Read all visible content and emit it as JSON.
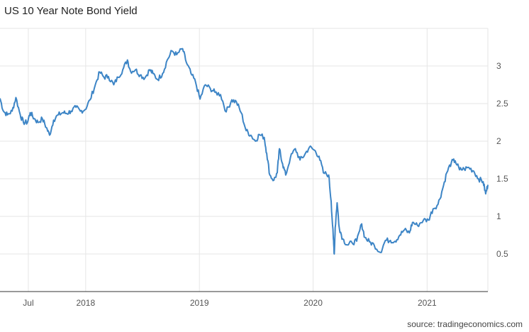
{
  "title": "US 10 Year Note Bond Yield",
  "source": "source: tradingeconomics.com",
  "colors": {
    "line": "#3d85c6",
    "grid": "#e6e6e6",
    "axis": "#333333"
  },
  "chart_data": {
    "type": "line",
    "title": "US 10 Year Note Bond Yield",
    "xlabel": "",
    "ylabel": "",
    "x_range": [
      "2017-04-01",
      "2021-07-15"
    ],
    "ylim": [
      0.0,
      3.5
    ],
    "grid": true,
    "legend": "none",
    "x_ticks": [
      {
        "date": "2017-07-01",
        "label": "Jul"
      },
      {
        "date": "2018-01-01",
        "label": "2018"
      },
      {
        "date": "2019-01-01",
        "label": "2019"
      },
      {
        "date": "2020-01-01",
        "label": "2020"
      },
      {
        "date": "2021-01-01",
        "label": "2021"
      }
    ],
    "y_ticks": [
      0.5,
      1,
      1.5,
      2,
      2.5,
      3
    ],
    "y_tick_labels": [
      "0.5",
      "1",
      "1.5",
      "2",
      "2.5",
      "3"
    ],
    "series": [
      {
        "values": [
          [
            "2017-04-01",
            2.57
          ],
          [
            "2017-04-12",
            2.4
          ],
          [
            "2017-04-25",
            2.35
          ],
          [
            "2017-05-10",
            2.4
          ],
          [
            "2017-05-22",
            2.58
          ],
          [
            "2017-06-05",
            2.35
          ],
          [
            "2017-06-15",
            2.25
          ],
          [
            "2017-06-28",
            2.25
          ],
          [
            "2017-07-07",
            2.38
          ],
          [
            "2017-07-20",
            2.3
          ],
          [
            "2017-08-01",
            2.25
          ],
          [
            "2017-08-15",
            2.3
          ],
          [
            "2017-08-28",
            2.18
          ],
          [
            "2017-09-07",
            2.08
          ],
          [
            "2017-09-20",
            2.28
          ],
          [
            "2017-10-05",
            2.35
          ],
          [
            "2017-10-20",
            2.38
          ],
          [
            "2017-11-01",
            2.37
          ],
          [
            "2017-11-15",
            2.4
          ],
          [
            "2017-12-01",
            2.45
          ],
          [
            "2017-12-15",
            2.4
          ],
          [
            "2017-12-30",
            2.42
          ],
          [
            "2018-01-15",
            2.55
          ],
          [
            "2018-02-01",
            2.75
          ],
          [
            "2018-02-15",
            2.92
          ],
          [
            "2018-03-01",
            2.85
          ],
          [
            "2018-03-15",
            2.86
          ],
          [
            "2018-04-01",
            2.75
          ],
          [
            "2018-04-15",
            2.85
          ],
          [
            "2018-04-30",
            2.95
          ],
          [
            "2018-05-15",
            3.08
          ],
          [
            "2018-05-25",
            2.93
          ],
          [
            "2018-06-10",
            2.95
          ],
          [
            "2018-06-25",
            2.88
          ],
          [
            "2018-07-10",
            2.84
          ],
          [
            "2018-07-25",
            2.95
          ],
          [
            "2018-08-05",
            2.9
          ],
          [
            "2018-08-20",
            2.82
          ],
          [
            "2018-09-05",
            2.9
          ],
          [
            "2018-09-20",
            3.08
          ],
          [
            "2018-10-05",
            3.2
          ],
          [
            "2018-10-20",
            3.15
          ],
          [
            "2018-11-08",
            3.23
          ],
          [
            "2018-11-20",
            3.05
          ],
          [
            "2018-12-05",
            2.9
          ],
          [
            "2018-12-20",
            2.78
          ],
          [
            "2019-01-03",
            2.56
          ],
          [
            "2019-01-20",
            2.75
          ],
          [
            "2019-02-05",
            2.7
          ],
          [
            "2019-02-20",
            2.65
          ],
          [
            "2019-03-10",
            2.62
          ],
          [
            "2019-03-28",
            2.39
          ],
          [
            "2019-04-15",
            2.55
          ],
          [
            "2019-04-30",
            2.52
          ],
          [
            "2019-05-15",
            2.38
          ],
          [
            "2019-05-31",
            2.14
          ],
          [
            "2019-06-15",
            2.08
          ],
          [
            "2019-06-30",
            2.0
          ],
          [
            "2019-07-12",
            2.09
          ],
          [
            "2019-07-28",
            2.05
          ],
          [
            "2019-08-05",
            1.84
          ],
          [
            "2019-08-15",
            1.55
          ],
          [
            "2019-08-28",
            1.48
          ],
          [
            "2019-09-08",
            1.58
          ],
          [
            "2019-09-15",
            1.9
          ],
          [
            "2019-09-25",
            1.7
          ],
          [
            "2019-10-05",
            1.55
          ],
          [
            "2019-10-20",
            1.78
          ],
          [
            "2019-11-05",
            1.9
          ],
          [
            "2019-11-20",
            1.75
          ],
          [
            "2019-12-05",
            1.82
          ],
          [
            "2019-12-20",
            1.92
          ],
          [
            "2020-01-05",
            1.88
          ],
          [
            "2020-01-20",
            1.8
          ],
          [
            "2020-02-03",
            1.58
          ],
          [
            "2020-02-20",
            1.55
          ],
          [
            "2020-02-28",
            1.2
          ],
          [
            "2020-03-06",
            0.7
          ],
          [
            "2020-03-09",
            0.5
          ],
          [
            "2020-03-12",
            0.85
          ],
          [
            "2020-03-18",
            1.18
          ],
          [
            "2020-03-25",
            0.85
          ],
          [
            "2020-04-05",
            0.7
          ],
          [
            "2020-04-20",
            0.62
          ],
          [
            "2020-05-05",
            0.65
          ],
          [
            "2020-05-20",
            0.67
          ],
          [
            "2020-06-05",
            0.9
          ],
          [
            "2020-06-15",
            0.72
          ],
          [
            "2020-06-30",
            0.66
          ],
          [
            "2020-07-15",
            0.62
          ],
          [
            "2020-08-04",
            0.52
          ],
          [
            "2020-08-20",
            0.68
          ],
          [
            "2020-09-05",
            0.68
          ],
          [
            "2020-09-20",
            0.67
          ],
          [
            "2020-10-05",
            0.75
          ],
          [
            "2020-10-20",
            0.82
          ],
          [
            "2020-11-05",
            0.78
          ],
          [
            "2020-11-15",
            0.92
          ],
          [
            "2020-12-01",
            0.88
          ],
          [
            "2020-12-20",
            0.95
          ],
          [
            "2021-01-05",
            0.95
          ],
          [
            "2021-01-20",
            1.1
          ],
          [
            "2021-02-05",
            1.16
          ],
          [
            "2021-02-20",
            1.37
          ],
          [
            "2021-03-05",
            1.58
          ],
          [
            "2021-03-20",
            1.72
          ],
          [
            "2021-04-01",
            1.74
          ],
          [
            "2021-04-15",
            1.62
          ],
          [
            "2021-04-30",
            1.63
          ],
          [
            "2021-05-15",
            1.65
          ],
          [
            "2021-05-31",
            1.6
          ],
          [
            "2021-06-15",
            1.5
          ],
          [
            "2021-06-30",
            1.46
          ],
          [
            "2021-07-08",
            1.3
          ],
          [
            "2021-07-15",
            1.42
          ]
        ]
      }
    ]
  }
}
